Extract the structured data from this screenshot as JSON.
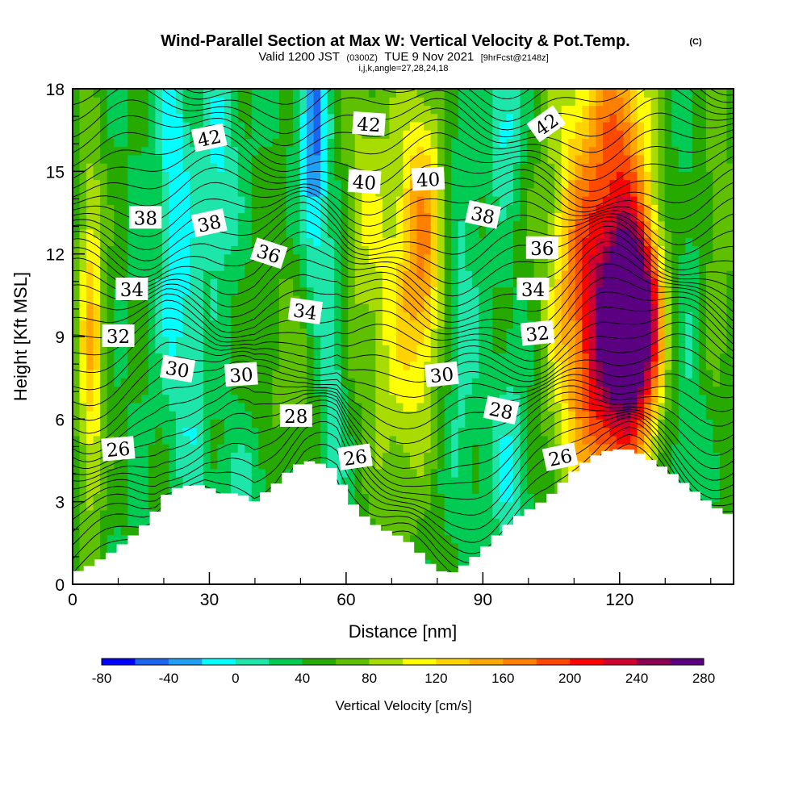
{
  "title": {
    "main": "Wind-Parallel Section at Max W: Vertical Velocity & Pot.Temp.",
    "copyright": "(C)",
    "valid_a": "Valid 1200 JST",
    "valid_b": "(0300Z)",
    "valid_c": "TUE 9 Nov 2021",
    "valid_d": "[9hrFcst@2148z]",
    "indices": "i,j,k,angle=27,28,24,18"
  },
  "chart_data": {
    "type": "heatmap",
    "xlabel": "Distance [nm]",
    "ylabel": "Height [Kft MSL]",
    "xlim": [
      0,
      145
    ],
    "ylim": [
      0,
      18
    ],
    "xticks": [
      "0",
      "30",
      "60",
      "90",
      "120"
    ],
    "yticks": [
      "0",
      "3",
      "6",
      "9",
      "12",
      "15",
      "18"
    ],
    "colorbar": {
      "label": "Vertical Velocity [cm/s]",
      "tick_labels": [
        "-80",
        "-40",
        "0",
        "40",
        "80",
        "120",
        "160",
        "200",
        "240",
        "280"
      ],
      "colors": [
        "#0000ff",
        "#1a66f0",
        "#1fa0f4",
        "#00ffff",
        "#1ee6aa",
        "#00cc55",
        "#26aa00",
        "#5fc000",
        "#a8dc00",
        "#ffff00",
        "#ffd200",
        "#ffa800",
        "#ff8000",
        "#ff4800",
        "#ff0000",
        "#d00030",
        "#8b0050",
        "#5a0080"
      ]
    },
    "terrain_kft": [
      [
        0,
        0.4
      ],
      [
        3,
        0.6
      ],
      [
        6,
        0.9
      ],
      [
        9,
        1.2
      ],
      [
        12,
        1.6
      ],
      [
        15,
        2.0
      ],
      [
        18,
        2.6
      ],
      [
        20,
        3.2
      ],
      [
        23,
        3.5
      ],
      [
        26,
        3.6
      ],
      [
        29,
        3.6
      ],
      [
        32,
        3.3
      ],
      [
        35,
        3.3
      ],
      [
        38,
        3.2
      ],
      [
        40,
        3.0
      ],
      [
        42,
        3.3
      ],
      [
        45,
        3.7
      ],
      [
        48,
        4.2
      ],
      [
        51,
        4.5
      ],
      [
        54,
        4.4
      ],
      [
        56,
        4.3
      ],
      [
        58,
        4.1
      ],
      [
        60,
        3.3
      ],
      [
        62,
        2.8
      ],
      [
        65,
        2.3
      ],
      [
        68,
        2.0
      ],
      [
        71,
        1.8
      ],
      [
        74,
        1.5
      ],
      [
        77,
        1.0
      ],
      [
        80,
        0.5
      ],
      [
        83,
        0.4
      ],
      [
        86,
        0.7
      ],
      [
        89,
        1.1
      ],
      [
        92,
        1.6
      ],
      [
        95,
        2.1
      ],
      [
        98,
        2.5
      ],
      [
        101,
        2.8
      ],
      [
        104,
        3.1
      ],
      [
        107,
        3.6
      ],
      [
        110,
        4.1
      ],
      [
        113,
        4.5
      ],
      [
        116,
        4.8
      ],
      [
        119,
        4.9
      ],
      [
        122,
        4.9
      ],
      [
        125,
        4.7
      ],
      [
        128,
        4.4
      ],
      [
        131,
        4.1
      ],
      [
        134,
        3.7
      ],
      [
        137,
        3.3
      ],
      [
        140,
        2.9
      ],
      [
        143,
        2.6
      ],
      [
        145,
        2.5
      ]
    ],
    "theta_labels": [
      {
        "text": "42",
        "x": 30,
        "y": 16.2
      },
      {
        "text": "42",
        "x": 65,
        "y": 16.7
      },
      {
        "text": "42",
        "x": 104,
        "y": 16.7
      },
      {
        "text": "40",
        "x": 64,
        "y": 14.6
      },
      {
        "text": "40",
        "x": 78,
        "y": 14.7
      },
      {
        "text": "38",
        "x": 16,
        "y": 13.3
      },
      {
        "text": "38",
        "x": 30,
        "y": 13.1
      },
      {
        "text": "38",
        "x": 90,
        "y": 13.4
      },
      {
        "text": "36",
        "x": 43,
        "y": 12.0
      },
      {
        "text": "36",
        "x": 103,
        "y": 12.2
      },
      {
        "text": "34",
        "x": 13,
        "y": 10.7
      },
      {
        "text": "34",
        "x": 51,
        "y": 9.9
      },
      {
        "text": "34",
        "x": 101,
        "y": 10.7
      },
      {
        "text": "32",
        "x": 10,
        "y": 9.0
      },
      {
        "text": "32",
        "x": 102,
        "y": 9.1
      },
      {
        "text": "30",
        "x": 23,
        "y": 7.8
      },
      {
        "text": "30",
        "x": 37,
        "y": 7.6
      },
      {
        "text": "30",
        "x": 81,
        "y": 7.6
      },
      {
        "text": "28",
        "x": 49,
        "y": 6.1
      },
      {
        "text": "28",
        "x": 94,
        "y": 6.3
      },
      {
        "text": "26",
        "x": 10,
        "y": 4.9
      },
      {
        "text": "26",
        "x": 62,
        "y": 4.6
      },
      {
        "text": "26",
        "x": 107,
        "y": 4.6
      }
    ]
  }
}
